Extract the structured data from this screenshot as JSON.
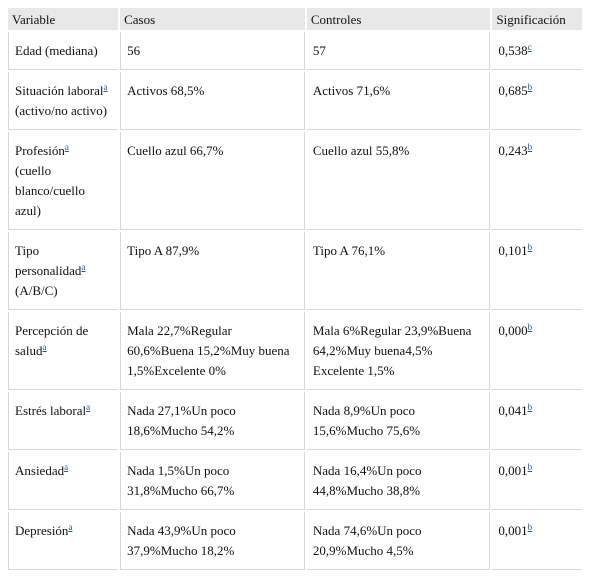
{
  "headers": [
    "Variable",
    "Casos",
    "Controles",
    "Significación"
  ],
  "rows": [
    {
      "variable": "Edad (mediana)",
      "var_sup": "",
      "casos": "56",
      "controles": "57",
      "sig": "0,538",
      "sig_sup": "c"
    },
    {
      "variable": "Situación laboral",
      "var_sup": "a",
      "var_rest": "(activo/no activo)",
      "casos": "Activos 68,5%",
      "controles": "Activos 71,6%",
      "sig": "0,685",
      "sig_sup": "b"
    },
    {
      "variable": "Profesión",
      "var_sup": "a",
      "var_rest": "(cuello blanco/cuello azul)",
      "casos": "Cuello azul 66,7%",
      "controles": "Cuello azul 55,8%",
      "sig": "0,243",
      "sig_sup": "b"
    },
    {
      "variable": "Tipo personalidad",
      "var_sup": "a",
      "var_rest": "(A/B/C)",
      "casos": "Tipo A 87,9%",
      "controles": "Tipo A 76,1%",
      "sig": "0,101",
      "sig_sup": "b"
    },
    {
      "variable": "Percepción de salud",
      "var_sup": "a",
      "casos": "Mala 22,7%Regular 60,6%Buena 15,2%Muy buena 1,5%Excelente 0%",
      "controles": "Mala 6%Regular 23,9%Buena 64,2%Muy buena4,5% Excelente 1,5%",
      "sig": "0,000",
      "sig_sup": "b"
    },
    {
      "variable": "Estrés laboral",
      "var_sup": "a",
      "casos": "Nada 27,1%Un poco 18,6%Mucho 54,2%",
      "controles": "Nada 8,9%Un poco 15,6%Mucho 75,6%",
      "sig": "0,041",
      "sig_sup": "b"
    },
    {
      "variable": "Ansiedad",
      "var_sup": "a",
      "casos": "Nada 1,5%Un poco 31,8%Mucho 66,7%",
      "controles": "Nada 16,4%Un poco 44,8%Mucho 38,8%",
      "sig": "0,001",
      "sig_sup": "b"
    },
    {
      "variable": "Depresión",
      "var_sup": "a",
      "casos": "Nada 43,9%Un poco 37,9%Mucho 18,2%",
      "controles": "Nada 74,6%Un poco 20,9%Mucho 4,5%",
      "sig": "0,001",
      "sig_sup": "b"
    }
  ]
}
